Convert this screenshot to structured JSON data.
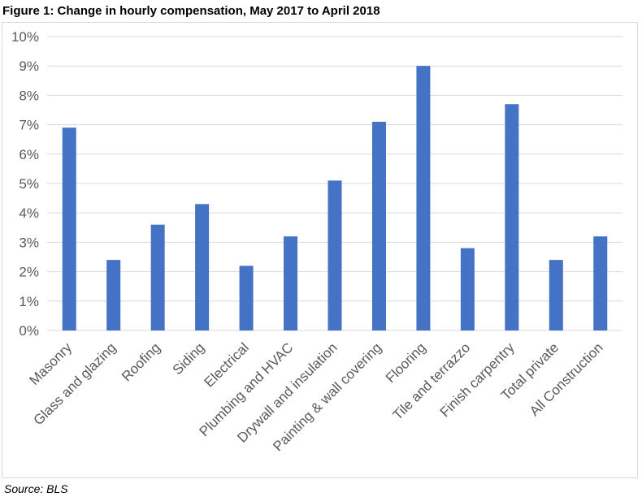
{
  "figure_title": "Figure 1: Change in hourly compensation, May 2017 to April 2018",
  "source_note": "Source: BLS",
  "colors": {
    "bar": "#4472C4",
    "grid": "#d9d9d9",
    "axis_text": "#595959"
  },
  "chart_data": {
    "type": "bar",
    "title": "Figure 1: Change in hourly compensation, May 2017 to April 2018",
    "categories": [
      "Masonry",
      "Glass and glazing",
      "Roofing",
      "Siding",
      "Electrical",
      "Plumbing and HVAC",
      "Drywall and insulation",
      "Painting & wall covering",
      "Flooring",
      "Tile and terrazzo",
      "Finish carpentry",
      "Total private",
      "All Construction"
    ],
    "values": [
      6.9,
      2.4,
      3.6,
      4.3,
      2.2,
      3.2,
      5.1,
      7.1,
      9.0,
      2.8,
      7.7,
      2.4,
      3.2
    ],
    "value_unit": "%",
    "ylim": [
      0,
      10
    ],
    "yticks": [
      "0%",
      "1%",
      "2%",
      "3%",
      "4%",
      "5%",
      "6%",
      "7%",
      "8%",
      "9%",
      "10%"
    ],
    "xlabel": "",
    "ylabel": "",
    "grid": true,
    "legend": "none"
  }
}
